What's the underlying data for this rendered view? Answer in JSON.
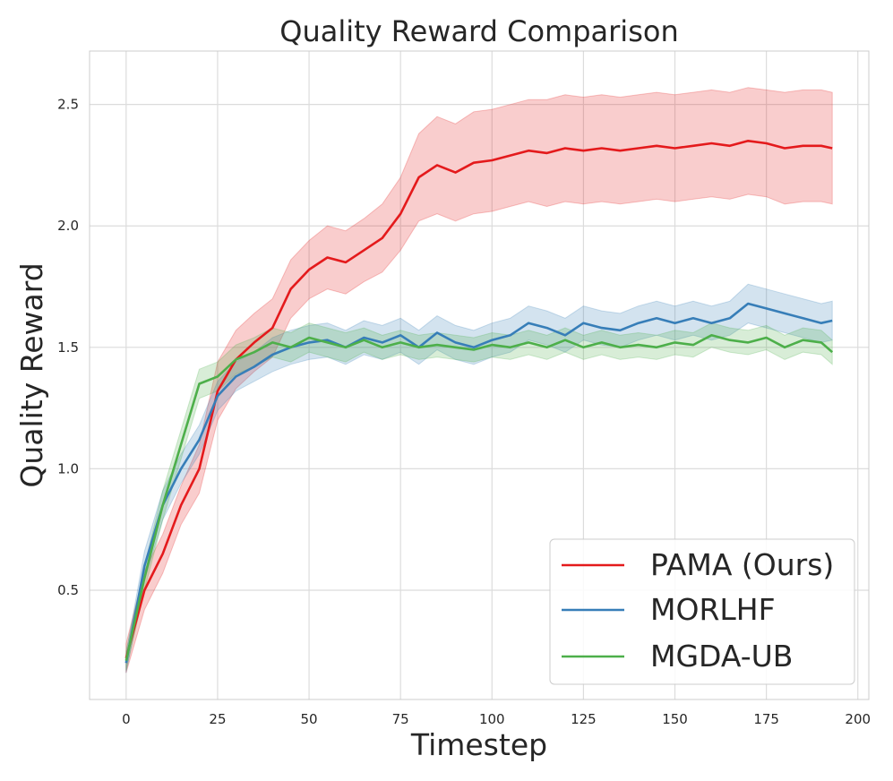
{
  "chart_data": {
    "type": "line",
    "title": "Quality Reward Comparison",
    "xlabel": "Timestep",
    "ylabel": "Quality Reward",
    "xlim": [
      -10,
      203
    ],
    "ylim": [
      0.05,
      2.72
    ],
    "xticks": [
      0,
      25,
      50,
      75,
      100,
      125,
      150,
      175,
      200
    ],
    "yticks": [
      0.5,
      1.0,
      1.5,
      2.0,
      2.5
    ],
    "xtick_labels": [
      "0",
      "25",
      "50",
      "75",
      "100",
      "125",
      "150",
      "175",
      "200"
    ],
    "ytick_labels": [
      "0.5",
      "1.0",
      "1.5",
      "2.0",
      "2.5"
    ],
    "grid": true,
    "legend_position": "lower-right",
    "shaded_band": "mean ± spread across runs",
    "series": [
      {
        "name": "PAMA (Ours)",
        "color": "#e41a1c",
        "x": [
          0,
          5,
          10,
          15,
          20,
          25,
          30,
          35,
          40,
          45,
          50,
          55,
          60,
          65,
          70,
          75,
          80,
          85,
          90,
          95,
          100,
          105,
          110,
          115,
          120,
          125,
          130,
          135,
          140,
          145,
          150,
          155,
          160,
          165,
          170,
          175,
          180,
          185,
          190,
          193
        ],
        "values": [
          0.22,
          0.5,
          0.65,
          0.85,
          1.0,
          1.32,
          1.45,
          1.52,
          1.58,
          1.74,
          1.82,
          1.87,
          1.85,
          1.9,
          1.95,
          2.05,
          2.2,
          2.25,
          2.22,
          2.26,
          2.27,
          2.29,
          2.31,
          2.3,
          2.32,
          2.31,
          2.32,
          2.31,
          2.32,
          2.33,
          2.32,
          2.33,
          2.34,
          2.33,
          2.35,
          2.34,
          2.32,
          2.33,
          2.33,
          2.32
        ],
        "spread": [
          0.06,
          0.08,
          0.08,
          0.08,
          0.1,
          0.12,
          0.12,
          0.12,
          0.12,
          0.12,
          0.12,
          0.13,
          0.13,
          0.13,
          0.14,
          0.15,
          0.18,
          0.2,
          0.2,
          0.21,
          0.21,
          0.21,
          0.21,
          0.22,
          0.22,
          0.22,
          0.22,
          0.22,
          0.22,
          0.22,
          0.22,
          0.22,
          0.22,
          0.22,
          0.22,
          0.22,
          0.23,
          0.23,
          0.23,
          0.23
        ]
      },
      {
        "name": "MORLHF",
        "color": "#377eb8",
        "x": [
          0,
          5,
          10,
          15,
          20,
          25,
          30,
          35,
          40,
          45,
          50,
          55,
          60,
          65,
          70,
          75,
          80,
          85,
          90,
          95,
          100,
          105,
          110,
          115,
          120,
          125,
          130,
          135,
          140,
          145,
          150,
          155,
          160,
          165,
          170,
          175,
          180,
          185,
          190,
          193
        ],
        "values": [
          0.2,
          0.6,
          0.85,
          1.0,
          1.12,
          1.3,
          1.38,
          1.42,
          1.47,
          1.5,
          1.52,
          1.53,
          1.5,
          1.54,
          1.52,
          1.55,
          1.5,
          1.56,
          1.52,
          1.5,
          1.53,
          1.55,
          1.6,
          1.58,
          1.55,
          1.6,
          1.58,
          1.57,
          1.6,
          1.62,
          1.6,
          1.62,
          1.6,
          1.62,
          1.68,
          1.66,
          1.64,
          1.62,
          1.6,
          1.61
        ],
        "spread": [
          0.04,
          0.06,
          0.06,
          0.06,
          0.06,
          0.06,
          0.06,
          0.06,
          0.07,
          0.07,
          0.07,
          0.07,
          0.07,
          0.07,
          0.07,
          0.07,
          0.07,
          0.07,
          0.07,
          0.07,
          0.07,
          0.07,
          0.07,
          0.07,
          0.07,
          0.07,
          0.07,
          0.07,
          0.07,
          0.07,
          0.07,
          0.07,
          0.07,
          0.07,
          0.08,
          0.08,
          0.08,
          0.08,
          0.08,
          0.08
        ]
      },
      {
        "name": "MGDA-UB",
        "color": "#4daf4a",
        "x": [
          0,
          5,
          10,
          15,
          20,
          25,
          30,
          35,
          40,
          45,
          50,
          55,
          60,
          65,
          70,
          75,
          80,
          85,
          90,
          95,
          100,
          105,
          110,
          115,
          120,
          125,
          130,
          135,
          140,
          145,
          150,
          155,
          160,
          165,
          170,
          175,
          180,
          185,
          190,
          193
        ],
        "values": [
          0.21,
          0.55,
          0.85,
          1.1,
          1.35,
          1.38,
          1.45,
          1.48,
          1.52,
          1.5,
          1.54,
          1.52,
          1.5,
          1.53,
          1.5,
          1.52,
          1.5,
          1.51,
          1.5,
          1.49,
          1.51,
          1.5,
          1.52,
          1.5,
          1.53,
          1.5,
          1.52,
          1.5,
          1.51,
          1.5,
          1.52,
          1.51,
          1.55,
          1.53,
          1.52,
          1.54,
          1.5,
          1.53,
          1.52,
          1.48
        ],
        "spread": [
          0.04,
          0.05,
          0.06,
          0.06,
          0.06,
          0.06,
          0.06,
          0.06,
          0.06,
          0.06,
          0.06,
          0.06,
          0.06,
          0.05,
          0.05,
          0.05,
          0.05,
          0.05,
          0.05,
          0.05,
          0.05,
          0.05,
          0.05,
          0.05,
          0.05,
          0.05,
          0.05,
          0.05,
          0.05,
          0.05,
          0.05,
          0.05,
          0.05,
          0.05,
          0.05,
          0.05,
          0.05,
          0.05,
          0.05,
          0.05
        ]
      }
    ]
  }
}
